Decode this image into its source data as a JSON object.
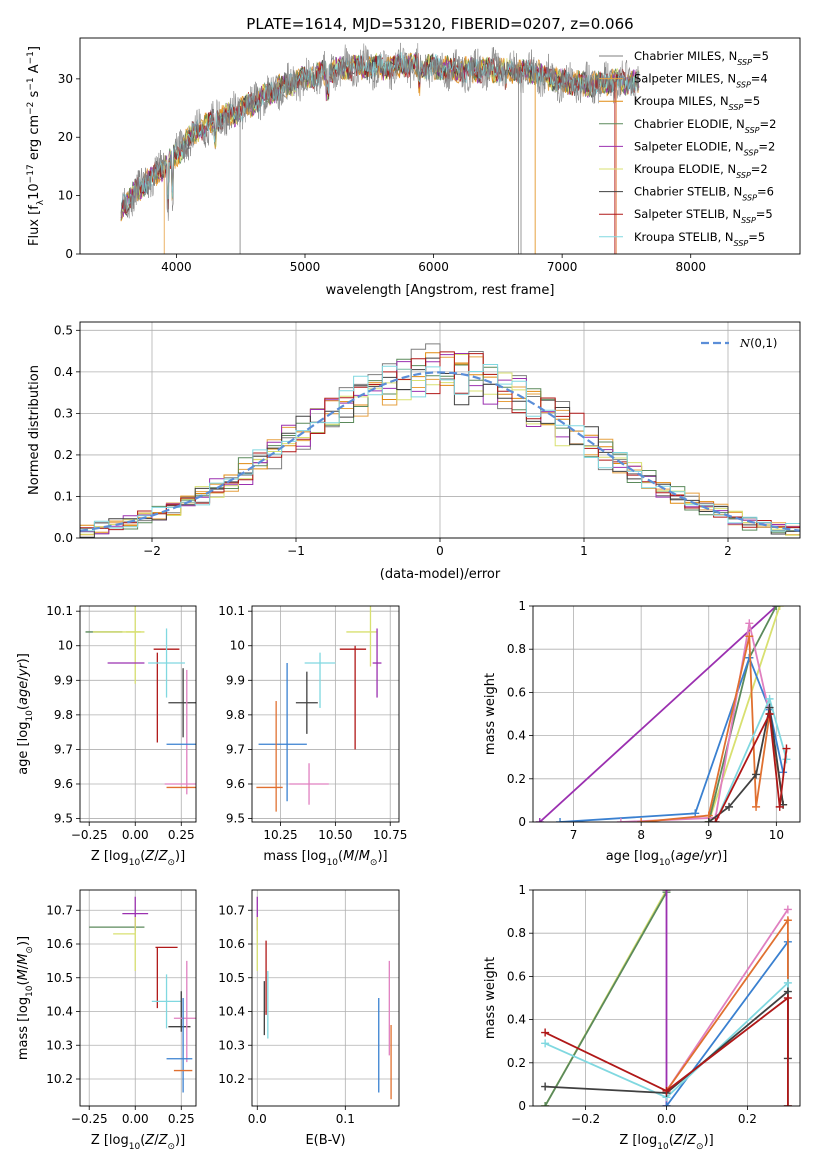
{
  "figure_title": "PLATE=1614, MJD=53120, FIBERID=0207, z=0.066",
  "colors": {
    "palette": [
      "#7f7f7f",
      "#e6a040",
      "#e08a10",
      "#5b8a5b",
      "#9b30b0",
      "#d8e070",
      "#404040",
      "#b01818",
      "#80d8e0",
      "#3a80d0",
      "#e07030",
      "#e080c0"
    ],
    "normal_curve": "#5b8ed8"
  },
  "chart_data": [
    {
      "id": "spectrum",
      "type": "line",
      "xlabel": "wavelength [Angstrom, rest frame]",
      "ylabel": "Flux [f_λ 10^-17 erg cm^-2 s^-1 A^-1]",
      "xlim": [
        3250,
        8850
      ],
      "ylim": [
        0,
        37
      ],
      "xticks": [
        4000,
        5000,
        6000,
        7000,
        8000
      ],
      "yticks": [
        0,
        10,
        20,
        30
      ],
      "grid": false,
      "legend_position": "top-right",
      "observed_color": "#7f7f7f",
      "continuum": {
        "x": [
          3570,
          3700,
          3850,
          4000,
          4150,
          4300,
          4450,
          4600,
          4800,
          5000,
          5200,
          5400,
          5600,
          5800,
          6000,
          6200,
          6400,
          6600,
          6800,
          7000,
          7200,
          7400,
          7600
        ],
        "y": [
          8,
          11,
          14,
          17,
          21,
          23,
          24,
          26,
          28.5,
          30,
          31.5,
          32,
          32,
          32.5,
          32,
          31.5,
          31.5,
          31.5,
          31,
          29.5,
          29,
          29.5,
          29.5
        ]
      },
      "legend": [
        {
          "name": "Chabrier MILES, N_SSP=5",
          "color": "#7f7f7f"
        },
        {
          "name": "Salpeter MILES, N_SSP=4",
          "color": "#e6a040"
        },
        {
          "name": "Kroupa MILES, N_SSP=5",
          "color": "#e08a10"
        },
        {
          "name": "Chabrier ELODIE, N_SSP=2",
          "color": "#5b8a5b"
        },
        {
          "name": "Salpeter ELODIE, N_SSP=2",
          "color": "#9b30b0"
        },
        {
          "name": "Kroupa ELODIE, N_SSP=2",
          "color": "#d8e070"
        },
        {
          "name": "Chabrier STELIB, N_SSP=6",
          "color": "#404040"
        },
        {
          "name": "Salpeter STELIB, N_SSP=5",
          "color": "#b01818"
        },
        {
          "name": "Kroupa STELIB, N_SSP=5",
          "color": "#80d8e0"
        }
      ],
      "legend_labels": [
        {
          "pre": "Chabrier MILES, N",
          "sub": "SSP",
          "post": "=5"
        },
        {
          "pre": "Salpeter MILES, N",
          "sub": "SSP",
          "post": "=4"
        },
        {
          "pre": "Kroupa MILES, N",
          "sub": "SSP",
          "post": "=5"
        },
        {
          "pre": "Chabrier ELODIE, N",
          "sub": "SSP",
          "post": "=2"
        },
        {
          "pre": "Salpeter ELODIE, N",
          "sub": "SSP",
          "post": "=2"
        },
        {
          "pre": "Kroupa ELODIE, N",
          "sub": "SSP",
          "post": "=2"
        },
        {
          "pre": "Chabrier STELIB, N",
          "sub": "SSP",
          "post": "=6"
        },
        {
          "pre": "Salpeter STELIB, N",
          "sub": "SSP",
          "post": "=5"
        },
        {
          "pre": "Kroupa STELIB, N",
          "sub": "SSP",
          "post": "=5"
        }
      ]
    },
    {
      "id": "residuals",
      "type": "line",
      "xlabel": "(data-model)/error",
      "ylabel": "Normed distribution",
      "xlim": [
        -2.5,
        2.5
      ],
      "ylim": [
        0,
        0.52
      ],
      "xticks": [
        -2,
        -1,
        0,
        1,
        2
      ],
      "xtick_labels": [
        "−2",
        "−1",
        "0",
        "1",
        "2"
      ],
      "yticks": [
        0.0,
        0.1,
        0.2,
        0.3,
        0.4,
        0.5
      ],
      "ytick_labels": [
        "0.0",
        "0.1",
        "0.2",
        "0.3",
        "0.4",
        "0.5"
      ],
      "grid": true,
      "legend_position": "top-right",
      "curve_label": "N(0,1)",
      "curve_color": "#5b8ed8",
      "histogram_bin_width": 0.1
    },
    {
      "id": "age_vs_Z",
      "type": "scatter",
      "xlabel": "Z [log10(Z/Z⊙)]",
      "ylabel": "age [log10(age/yr)]",
      "xlim": [
        -0.3,
        0.33
      ],
      "ylim": [
        9.49,
        10.115
      ],
      "xticks": [
        -0.25,
        0.0,
        0.25
      ],
      "xtick_labels": [
        "−0.25",
        "0.00",
        "0.25"
      ],
      "yticks": [
        9.5,
        9.6,
        9.7,
        9.8,
        9.9,
        10.0,
        10.1
      ],
      "grid": true,
      "points": [
        {
          "x": -0.17,
          "y": 10.04,
          "xerr": 0.1,
          "yerr": 0.0,
          "color": "#5b8a5b"
        },
        {
          "x": -0.1,
          "y": 10.04,
          "xerr": 0.13,
          "yerr": 0.0,
          "color": "#d8e070"
        },
        {
          "x": 0.0,
          "y": 10.04,
          "xerr": 0.05,
          "yerr": 0.15,
          "color": "#d8e070"
        },
        {
          "x": -0.05,
          "y": 9.95,
          "xerr": 0.1,
          "yerr": 0.0,
          "color": "#9b30b0"
        },
        {
          "x": 0.17,
          "y": 9.99,
          "xerr": 0.07,
          "yerr": 0.0,
          "color": "#b01818"
        },
        {
          "x": 0.12,
          "y": 9.85,
          "xerr": 0.0,
          "yerr": 0.13,
          "color": "#b01818"
        },
        {
          "x": 0.17,
          "y": 9.95,
          "xerr": 0.1,
          "yerr": 0.0,
          "color": "#80d8e0"
        },
        {
          "x": 0.17,
          "y": 9.95,
          "xerr": 0.0,
          "yerr": 0.1,
          "color": "#80d8e0"
        },
        {
          "x": 0.26,
          "y": 9.835,
          "xerr": 0.08,
          "yerr": 0.1,
          "color": "#404040"
        },
        {
          "x": 0.28,
          "y": 9.75,
          "xerr": 0.0,
          "yerr": 0.18,
          "color": "#e080c0"
        },
        {
          "x": 0.26,
          "y": 9.715,
          "xerr": 0.09,
          "yerr": 0.0,
          "color": "#3a80d0"
        },
        {
          "x": 0.26,
          "y": 9.6,
          "xerr": 0.1,
          "yerr": 0.0,
          "color": "#e080c0"
        },
        {
          "x": 0.25,
          "y": 9.59,
          "xerr": 0.08,
          "yerr": 0.0,
          "color": "#e07030"
        }
      ]
    },
    {
      "id": "age_vs_mass",
      "type": "scatter",
      "xlabel": "mass [log10(M/M⊙)]",
      "ylabel": "",
      "xlim": [
        10.12,
        10.79
      ],
      "ylim": [
        9.49,
        10.115
      ],
      "xticks": [
        10.25,
        10.5,
        10.75
      ],
      "xtick_labels": [
        "10.25",
        "10.50",
        "10.75"
      ],
      "yticks": [
        9.5,
        9.6,
        9.7,
        9.8,
        9.9,
        10.0,
        10.1
      ],
      "grid": true,
      "points": [
        {
          "x": 10.62,
          "y": 10.04,
          "xerr": 0.07,
          "yerr": 0.0,
          "color": "#d8e070"
        },
        {
          "x": 10.66,
          "y": 10.04,
          "xerr": 0.0,
          "yerr": 0.1,
          "color": "#d8e070"
        },
        {
          "x": 10.69,
          "y": 9.95,
          "xerr": 0.02,
          "yerr": 0.1,
          "color": "#9b30b0"
        },
        {
          "x": 10.58,
          "y": 9.99,
          "xerr": 0.06,
          "yerr": 0.0,
          "color": "#b01818"
        },
        {
          "x": 10.59,
          "y": 9.85,
          "xerr": 0.0,
          "yerr": 0.15,
          "color": "#b01818"
        },
        {
          "x": 10.43,
          "y": 9.95,
          "xerr": 0.07,
          "yerr": 0.0,
          "color": "#80d8e0"
        },
        {
          "x": 10.43,
          "y": 9.9,
          "xerr": 0.0,
          "yerr": 0.08,
          "color": "#80d8e0"
        },
        {
          "x": 10.37,
          "y": 9.835,
          "xerr": 0.05,
          "yerr": 0.09,
          "color": "#404040"
        },
        {
          "x": 10.28,
          "y": 9.75,
          "xerr": 0.0,
          "yerr": 0.2,
          "color": "#3a80d0"
        },
        {
          "x": 10.26,
          "y": 9.715,
          "xerr": 0.11,
          "yerr": 0.0,
          "color": "#3a80d0"
        },
        {
          "x": 10.38,
          "y": 9.6,
          "xerr": 0.09,
          "yerr": 0.06,
          "color": "#e080c0"
        },
        {
          "x": 10.2,
          "y": 9.59,
          "xerr": 0.06,
          "yerr": 0.0,
          "color": "#e07030"
        },
        {
          "x": 10.23,
          "y": 9.68,
          "xerr": 0.0,
          "yerr": 0.16,
          "color": "#e07030"
        }
      ]
    },
    {
      "id": "massweight_vs_age",
      "type": "line",
      "xlabel": "age [log10(age/yr)]",
      "ylabel": "mass weight",
      "xlim": [
        6.4,
        10.35
      ],
      "ylim": [
        0,
        1.0
      ],
      "xticks": [
        7,
        8,
        9,
        10
      ],
      "yticks": [
        0.0,
        0.2,
        0.4,
        0.6,
        0.8,
        1.0
      ],
      "grid": true,
      "series": [
        {
          "color": "#9b30b0",
          "x": [
            6.5,
            10.0
          ],
          "y": [
            0.0,
            1.0
          ]
        },
        {
          "color": "#d8e070",
          "x": [
            9.0,
            10.05
          ],
          "y": [
            0.0,
            1.0
          ]
        },
        {
          "color": "#5b8a5b",
          "x": [
            9.0,
            9.6,
            10.0
          ],
          "y": [
            0.0,
            0.76,
            1.0
          ]
        },
        {
          "color": "#3a80d0",
          "x": [
            6.8,
            8.8,
            9.6,
            9.9,
            10.1
          ],
          "y": [
            0.0,
            0.04,
            0.76,
            0.52,
            0.23
          ]
        },
        {
          "color": "#e080c0",
          "x": [
            7.7,
            9.1,
            9.6,
            9.9
          ],
          "y": [
            0.0,
            0.02,
            0.92,
            0.5
          ]
        },
        {
          "color": "#e07030",
          "x": [
            8.0,
            9.0,
            9.6,
            9.7,
            9.9,
            10.1
          ],
          "y": [
            0.0,
            0.03,
            0.86,
            0.07,
            0.5,
            0.08
          ]
        },
        {
          "color": "#80d8e0",
          "x": [
            9.1,
            9.9,
            10.15
          ],
          "y": [
            0.0,
            0.57,
            0.29
          ]
        },
        {
          "color": "#404040",
          "x": [
            9.0,
            9.3,
            9.7,
            9.9,
            10.1
          ],
          "y": [
            0.0,
            0.07,
            0.22,
            0.53,
            0.08
          ]
        },
        {
          "color": "#b01818",
          "x": [
            9.1,
            9.9,
            10.05,
            10.15
          ],
          "y": [
            0.0,
            0.5,
            0.07,
            0.34
          ]
        }
      ]
    },
    {
      "id": "mass_vs_Z",
      "type": "scatter",
      "xlabel": "Z [log10(Z/Z⊙)]",
      "ylabel": "mass [log10(M/M⊙)]",
      "xlim": [
        -0.3,
        0.33
      ],
      "ylim": [
        10.12,
        10.76
      ],
      "xticks": [
        -0.25,
        0.0,
        0.25
      ],
      "xtick_labels": [
        "−0.25",
        "0.00",
        "0.25"
      ],
      "yticks": [
        10.2,
        10.3,
        10.4,
        10.5,
        10.6,
        10.7
      ],
      "grid": true,
      "points": [
        {
          "x": 0.0,
          "y": 10.69,
          "xerr": 0.07,
          "yerr": 0.05,
          "color": "#9b30b0"
        },
        {
          "x": -0.1,
          "y": 10.65,
          "xerr": 0.15,
          "yerr": 0.0,
          "color": "#5b8a5b"
        },
        {
          "x": -0.06,
          "y": 10.63,
          "xerr": 0.06,
          "yerr": 0.0,
          "color": "#d8e070"
        },
        {
          "x": 0.0,
          "y": 10.6,
          "xerr": 0.0,
          "yerr": 0.08,
          "color": "#d8e070"
        },
        {
          "x": 0.17,
          "y": 10.59,
          "xerr": 0.06,
          "yerr": 0.0,
          "color": "#b01818"
        },
        {
          "x": 0.12,
          "y": 10.5,
          "xerr": 0.0,
          "yerr": 0.09,
          "color": "#b01818"
        },
        {
          "x": 0.17,
          "y": 10.43,
          "xerr": 0.08,
          "yerr": 0.0,
          "color": "#80d8e0"
        },
        {
          "x": 0.17,
          "y": 10.43,
          "xerr": 0.0,
          "yerr": 0.08,
          "color": "#80d8e0"
        },
        {
          "x": 0.25,
          "y": 10.4,
          "xerr": 0.0,
          "yerr": 0.06,
          "color": "#404040"
        },
        {
          "x": 0.24,
          "y": 10.355,
          "xerr": 0.06,
          "yerr": 0.0,
          "color": "#404040"
        },
        {
          "x": 0.28,
          "y": 10.4,
          "xerr": 0.0,
          "yerr": 0.15,
          "color": "#e080c0"
        },
        {
          "x": 0.27,
          "y": 10.38,
          "xerr": 0.06,
          "yerr": 0.0,
          "color": "#e080c0"
        },
        {
          "x": 0.24,
          "y": 10.26,
          "xerr": 0.07,
          "yerr": 0.0,
          "color": "#3a80d0"
        },
        {
          "x": 0.26,
          "y": 10.3,
          "xerr": 0.0,
          "yerr": 0.14,
          "color": "#3a80d0"
        },
        {
          "x": 0.26,
          "y": 10.225,
          "xerr": 0.05,
          "yerr": 0.0,
          "color": "#e07030"
        }
      ]
    },
    {
      "id": "mass_vs_EBV",
      "type": "scatter",
      "xlabel": "E(B-V)",
      "ylabel": "",
      "xlim": [
        -0.006,
        0.161
      ],
      "ylim": [
        10.12,
        10.76
      ],
      "xticks": [
        0.0,
        0.1
      ],
      "xtick_labels": [
        "0.0",
        "0.1"
      ],
      "yticks": [
        10.2,
        10.3,
        10.4,
        10.5,
        10.6,
        10.7
      ],
      "grid": true,
      "points": [
        {
          "x": 0.0,
          "y": 10.69,
          "xerr": 0.0,
          "yerr": 0.05,
          "color": "#9b30b0"
        },
        {
          "x": 0.0,
          "y": 10.6,
          "xerr": 0.0,
          "yerr": 0.08,
          "color": "#d8e070"
        },
        {
          "x": 0.01,
          "y": 10.5,
          "xerr": 0.0,
          "yerr": 0.11,
          "color": "#b01818"
        },
        {
          "x": 0.008,
          "y": 10.41,
          "xerr": 0.0,
          "yerr": 0.08,
          "color": "#404040"
        },
        {
          "x": 0.012,
          "y": 10.42,
          "xerr": 0.0,
          "yerr": 0.1,
          "color": "#80d8e0"
        },
        {
          "x": 0.138,
          "y": 10.3,
          "xerr": 0.0,
          "yerr": 0.14,
          "color": "#3a80d0"
        },
        {
          "x": 0.15,
          "y": 10.41,
          "xerr": 0.0,
          "yerr": 0.14,
          "color": "#e080c0"
        },
        {
          "x": 0.152,
          "y": 10.25,
          "xerr": 0.0,
          "yerr": 0.11,
          "color": "#e07030"
        }
      ]
    },
    {
      "id": "massweight_vs_Z",
      "type": "line",
      "xlabel": "Z [log10(Z/Z⊙)]",
      "ylabel": "mass weight",
      "xlim": [
        -0.33,
        0.33
      ],
      "ylim": [
        0,
        1.0
      ],
      "xticks": [
        -0.2,
        0.0,
        0.2
      ],
      "xtick_labels": [
        "−0.2",
        "0.0",
        "0.2"
      ],
      "yticks": [
        0.0,
        0.2,
        0.4,
        0.6,
        0.8,
        1.0
      ],
      "grid": true,
      "series": [
        {
          "color": "#d8e070",
          "x": [
            -0.3,
            0.0
          ],
          "y": [
            0.0,
            1.0
          ]
        },
        {
          "color": "#5b8a5b",
          "x": [
            -0.3,
            0.0
          ],
          "y": [
            0.0,
            0.99
          ]
        },
        {
          "color": "#9b30b0",
          "x": [
            0.0,
            0.0
          ],
          "y": [
            1.0,
            0.0
          ]
        },
        {
          "color": "#3a80d0",
          "x": [
            0.0,
            0.3,
            0.3
          ],
          "y": [
            0.0,
            0.76,
            0.0
          ]
        },
        {
          "color": "#e080c0",
          "x": [
            0.0,
            0.3
          ],
          "y": [
            0.07,
            0.91
          ]
        },
        {
          "color": "#e07030",
          "x": [
            0.0,
            0.3,
            0.3
          ],
          "y": [
            0.07,
            0.86,
            0.0
          ]
        },
        {
          "color": "#80d8e0",
          "x": [
            -0.3,
            0.0,
            0.3,
            0.3
          ],
          "y": [
            0.29,
            0.04,
            0.57,
            0.0
          ]
        },
        {
          "color": "#404040",
          "x": [
            -0.3,
            0.0,
            0.3,
            0.3
          ],
          "y": [
            0.09,
            0.06,
            0.53,
            0.22
          ]
        },
        {
          "color": "#b01818",
          "x": [
            -0.3,
            0.0,
            0.3,
            0.3
          ],
          "y": [
            0.34,
            0.07,
            0.5,
            0.0
          ]
        }
      ]
    }
  ]
}
